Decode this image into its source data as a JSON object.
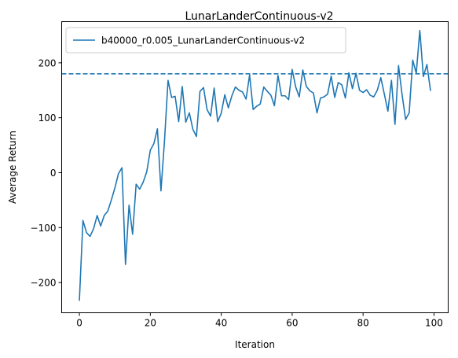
{
  "chart_data": {
    "type": "line",
    "title": "LunarLanderContinuous-v2",
    "xlabel": "Iteration",
    "ylabel": "Average Return",
    "xlim": [
      -5,
      104
    ],
    "ylim": [
      -255,
      275
    ],
    "xticks": [
      0,
      20,
      40,
      60,
      80,
      100
    ],
    "yticks": [
      -200,
      -100,
      0,
      100,
      200
    ],
    "xtick_labels": [
      "0",
      "20",
      "40",
      "60",
      "80",
      "100"
    ],
    "ytick_labels": [
      "−200",
      "−100",
      "0",
      "100",
      "200"
    ],
    "grid": false,
    "legend_position": "top-left",
    "reference_line": {
      "y": 180,
      "style": "dashed",
      "color": "#1f77b4"
    },
    "series": [
      {
        "name": "b40000_r0.005_LunarLanderContinuous-v2",
        "color": "#1f77b4",
        "x": [
          0,
          1,
          2,
          3,
          4,
          5,
          6,
          7,
          8,
          9,
          10,
          11,
          12,
          13,
          14,
          15,
          16,
          17,
          18,
          19,
          20,
          21,
          22,
          23,
          24,
          25,
          26,
          27,
          28,
          29,
          30,
          31,
          32,
          33,
          34,
          35,
          36,
          37,
          38,
          39,
          40,
          41,
          42,
          43,
          44,
          45,
          46,
          47,
          48,
          49,
          50,
          51,
          52,
          53,
          54,
          55,
          56,
          57,
          58,
          59,
          60,
          61,
          62,
          63,
          64,
          65,
          66,
          67,
          68,
          69,
          70,
          71,
          72,
          73,
          74,
          75,
          76,
          77,
          78,
          79,
          80,
          81,
          82,
          83,
          84,
          85,
          86,
          87,
          88,
          89,
          90,
          91,
          92,
          93,
          94,
          95,
          96,
          97,
          98,
          99
        ],
        "y": [
          -232,
          -87,
          -109,
          -116,
          -102,
          -78,
          -97,
          -78,
          -70,
          -50,
          -28,
          -2,
          9,
          -167,
          -59,
          -112,
          -21,
          -30,
          -17,
          2,
          41,
          53,
          80,
          -33,
          58,
          168,
          137,
          139,
          93,
          157,
          92,
          109,
          79,
          66,
          148,
          155,
          115,
          103,
          154,
          93,
          108,
          142,
          118,
          140,
          156,
          150,
          147,
          134,
          178,
          115,
          121,
          125,
          156,
          148,
          141,
          122,
          177,
          140,
          140,
          133,
          188,
          156,
          138,
          187,
          157,
          149,
          145,
          109,
          136,
          138,
          143,
          176,
          137,
          164,
          160,
          136,
          182,
          153,
          181,
          150,
          146,
          151,
          141,
          138,
          150,
          173,
          143,
          112,
          168,
          88,
          195,
          142,
          97,
          109,
          205,
          181,
          259,
          175,
          197,
          150
        ]
      }
    ]
  }
}
